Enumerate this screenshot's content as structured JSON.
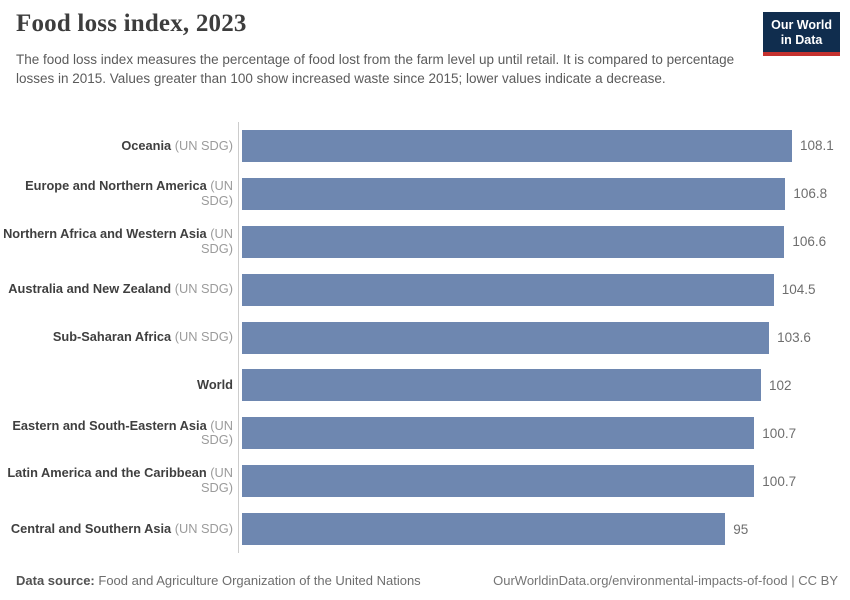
{
  "header": {
    "title": "Food loss index, 2023",
    "subtitle": "The food loss index measures the percentage of food lost from the farm level up until retail. It is compared to percentage losses in 2015. Values greater than 100 show increased waste since 2015; lower values indicate a decrease.",
    "logo_line1": "Our World",
    "logo_line2": "in Data"
  },
  "chart_data": {
    "type": "bar",
    "orientation": "horizontal",
    "title": "Food loss index, 2023",
    "categories": [
      "Oceania",
      "Europe and Northern America",
      "Northern Africa and Western Asia",
      "Australia and New Zealand",
      "Sub-Saharan Africa",
      "World",
      "Eastern and South-Eastern Asia",
      "Latin America and the Caribbean",
      "Central and Southern Asia"
    ],
    "qualifiers": [
      "(UN SDG)",
      "(UN SDG)",
      "(UN SDG)",
      "(UN SDG)",
      "(UN SDG)",
      "",
      "(UN SDG)",
      "(UN SDG)",
      "(UN SDG)"
    ],
    "values": [
      108.1,
      106.8,
      106.6,
      104.5,
      103.6,
      102,
      100.7,
      100.7,
      95
    ],
    "value_labels": [
      "108.1",
      "106.8",
      "106.6",
      "104.5",
      "103.6",
      "102",
      "100.7",
      "100.7",
      "95"
    ],
    "xlim": [
      0,
      108.1
    ],
    "grid": false,
    "legend": "none",
    "bar_color": "#6e87b0",
    "axis_color": "#cccccc"
  },
  "footer": {
    "source_label": "Data source:",
    "source_text": "Food and Agriculture Organization of the United Nations",
    "right_text": "OurWorldinData.org/environmental-impacts-of-food | CC BY"
  },
  "colors": {
    "bar": "#6e87b0",
    "logo_background": "#102d4e",
    "logo_accent": "#c5312e",
    "title_text": "#3d3d3d",
    "subtitle_text": "#5b5b5b",
    "value_text": "#6e6e6e",
    "qualifier_text": "#9b9b9b"
  }
}
